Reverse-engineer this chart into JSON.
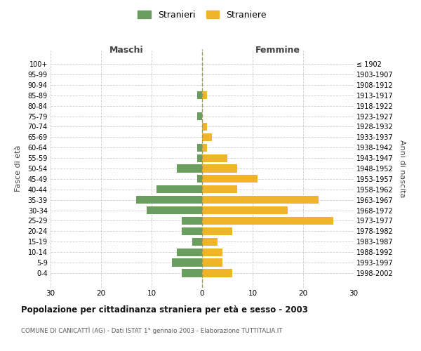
{
  "age_groups": [
    "100+",
    "95-99",
    "90-94",
    "85-89",
    "80-84",
    "75-79",
    "70-74",
    "65-69",
    "60-64",
    "55-59",
    "50-54",
    "45-49",
    "40-44",
    "35-39",
    "30-34",
    "25-29",
    "20-24",
    "15-19",
    "10-14",
    "5-9",
    "0-4"
  ],
  "birth_years": [
    "≤ 1902",
    "1903-1907",
    "1908-1912",
    "1913-1917",
    "1918-1922",
    "1923-1927",
    "1928-1932",
    "1933-1937",
    "1938-1942",
    "1943-1947",
    "1948-1952",
    "1953-1957",
    "1958-1962",
    "1963-1967",
    "1968-1972",
    "1973-1977",
    "1978-1982",
    "1983-1987",
    "1988-1992",
    "1993-1997",
    "1998-2002"
  ],
  "maschi": [
    0,
    0,
    0,
    1,
    0,
    1,
    0,
    0,
    1,
    1,
    5,
    1,
    9,
    13,
    11,
    4,
    4,
    2,
    5,
    6,
    4
  ],
  "femmine": [
    0,
    0,
    0,
    1,
    0,
    0,
    1,
    2,
    1,
    5,
    7,
    11,
    7,
    23,
    17,
    26,
    6,
    3,
    4,
    4,
    6
  ],
  "color_maschi": "#6a9e5f",
  "color_femmine": "#f0b429",
  "title": "Popolazione per cittadinanza straniera per età e sesso - 2003",
  "subtitle": "COMUNE DI CANICATTÌ (AG) - Dati ISTAT 1° gennaio 2003 - Elaborazione TUTTITALIA.IT",
  "ylabel_left": "Fasce di età",
  "ylabel_right": "Anni di nascita",
  "xlabel_maschi": "Maschi",
  "xlabel_femmine": "Femmine",
  "legend_maschi": "Stranieri",
  "legend_femmine": "Straniere",
  "xlim": 30,
  "bg_color": "#ffffff",
  "grid_color": "#cccccc",
  "dashed_line_color": "#999966"
}
